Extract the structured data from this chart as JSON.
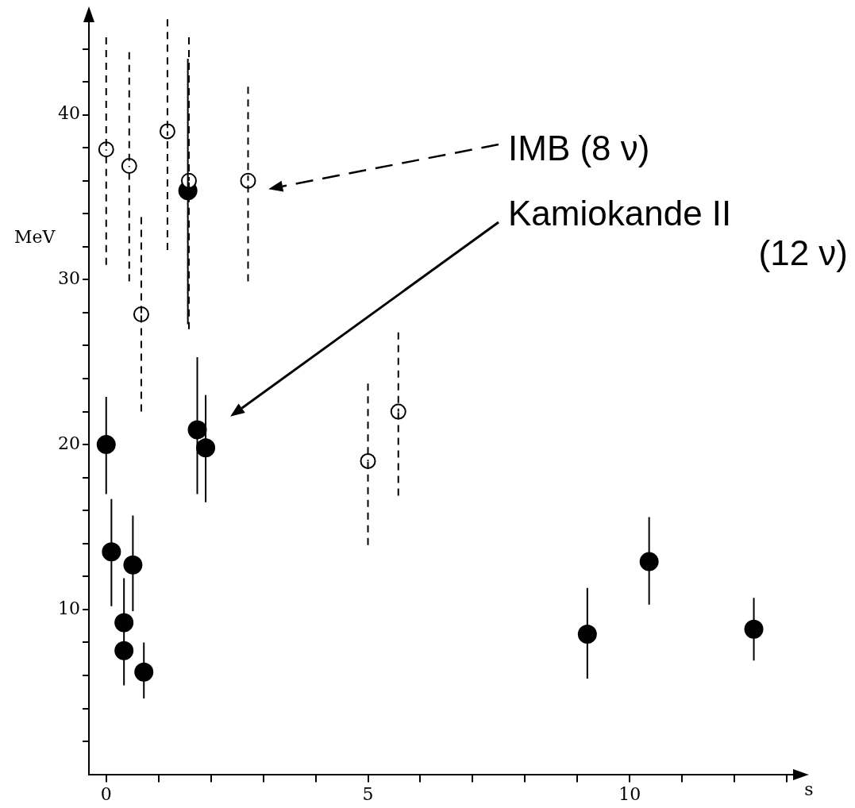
{
  "chart_data": {
    "type": "scatter",
    "xlabel": "s",
    "ylabel": "MeV",
    "marker": "circle",
    "grid": false,
    "xlim": [
      -0.33,
      13.15
    ],
    "ylim": [
      0,
      46
    ],
    "xticks": [
      0,
      {
        "value": 1,
        "label": null
      },
      {
        "value": 2,
        "label": null
      },
      {
        "value": 3,
        "label": null
      },
      {
        "value": 4,
        "label": null
      },
      5,
      {
        "value": 6,
        "label": null
      },
      {
        "value": 7,
        "label": null
      },
      {
        "value": 8,
        "label": null
      },
      {
        "value": 9,
        "label": null
      },
      10,
      {
        "value": 11,
        "label": null
      },
      {
        "value": 12,
        "label": null
      },
      {
        "value": 13,
        "label": null
      }
    ],
    "yticks": [
      {
        "value": 2,
        "label": null
      },
      {
        "value": 4,
        "label": null
      },
      {
        "value": 6,
        "label": null
      },
      {
        "value": 8,
        "label": null
      },
      10,
      {
        "value": 12,
        "label": null
      },
      {
        "value": 14,
        "label": null
      },
      {
        "value": 16,
        "label": null
      },
      {
        "value": 18,
        "label": null
      },
      20,
      {
        "value": 22,
        "label": null
      },
      {
        "value": 24,
        "label": null
      },
      {
        "value": 26,
        "label": null
      },
      {
        "value": 28,
        "label": null
      },
      30,
      {
        "value": 32,
        "label": null
      },
      {
        "value": 34,
        "label": null
      },
      {
        "value": 36,
        "label": null
      },
      {
        "value": 38,
        "label": null
      },
      40,
      {
        "value": 42,
        "label": null
      },
      {
        "value": 44,
        "label": null
      }
    ],
    "series": [
      {
        "color": "#000000",
        "line_style": "dashed",
        "x": [
          0,
          0.44,
          0.67,
          1.17,
          1.58,
          2.71,
          5.0,
          5.58
        ],
        "values": [
          37.9,
          36.9,
          27.9,
          39.0,
          36.0,
          36.0,
          19.0,
          22.0
        ],
        "errors": [
          [
            30.9,
            44.7
          ],
          [
            29.9,
            43.8
          ],
          [
            22.0,
            33.8
          ],
          [
            31.8,
            45.8
          ],
          [
            27.0,
            44.7
          ],
          [
            29.9,
            41.7
          ],
          [
            13.9,
            23.7
          ],
          [
            16.9,
            26.8
          ]
        ]
      },
      {
        "color": "#000000",
        "line_style": "solid",
        "x": [
          0,
          0.1,
          0.34,
          0.34,
          0.51,
          0.72,
          1.56,
          1.74,
          1.9,
          9.19,
          10.37,
          12.37
        ],
        "values": [
          20.0,
          13.5,
          9.2,
          7.5,
          12.7,
          6.2,
          35.4,
          20.9,
          19.8,
          8.5,
          12.9,
          8.8
        ],
        "errors": [
          [
            17.0,
            22.9
          ],
          [
            10.2,
            16.7
          ],
          [
            5.4,
            11.9
          ],
          null,
          [
            9.9,
            15.7
          ],
          [
            4.6,
            8.0
          ],
          [
            27.3,
            43.4
          ],
          [
            17.0,
            25.3
          ],
          [
            16.5,
            23.0
          ],
          [
            5.8,
            11.3
          ],
          [
            10.3,
            15.6
          ],
          [
            6.9,
            10.7
          ]
        ]
      }
    ],
    "annotations": [
      "IMB (8 ν)",
      "Kamiokande II (12 ν)"
    ]
  }
}
